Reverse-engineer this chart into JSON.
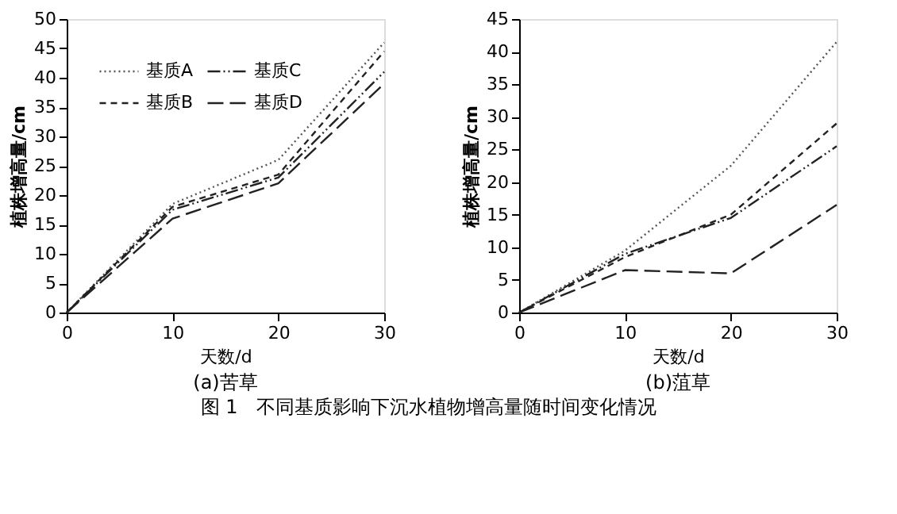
{
  "chart_data": [
    {
      "type": "line",
      "title": "(a)苦草",
      "xlabel": "天数/d",
      "ylabel": "植株增高量/cm",
      "x": [
        0,
        10,
        20,
        30
      ],
      "xlim": [
        0,
        30
      ],
      "xticks": [
        0,
        10,
        20,
        30
      ],
      "ylim": [
        0,
        50
      ],
      "yticks": [
        0,
        5,
        10,
        15,
        20,
        25,
        30,
        35,
        40,
        45,
        50
      ],
      "grid": false,
      "legend": "top left",
      "marker": "none",
      "series": [
        {
          "name": "基质A",
          "color": "#555555",
          "line_style": "dotted",
          "values": [
            0,
            18.5,
            26,
            46
          ]
        },
        {
          "name": "基质B",
          "color": "#222222",
          "line_style": "dashed",
          "values": [
            0,
            18,
            23.5,
            44.5
          ]
        },
        {
          "name": "基质C",
          "color": "#222222",
          "line_style": "dashdot",
          "values": [
            0,
            17.5,
            23,
            41
          ]
        },
        {
          "name": "基质D",
          "color": "#222222",
          "line_style": "longdash",
          "values": [
            0,
            16,
            22,
            39
          ]
        }
      ]
    },
    {
      "type": "line",
      "title": "(b)菹草",
      "xlabel": "天数/d",
      "ylabel": "植株增高量/cm",
      "x": [
        0,
        10,
        20,
        30
      ],
      "xlim": [
        0,
        30
      ],
      "xticks": [
        0,
        10,
        20,
        30
      ],
      "ylim": [
        0,
        45
      ],
      "yticks": [
        0,
        5,
        10,
        15,
        20,
        25,
        30,
        35,
        40,
        45
      ],
      "grid": false,
      "legend": "top left",
      "marker": "none",
      "annotations": [
        "图 1　不同基质影响下沉水植物增高量随时间变化情况"
      ],
      "series": [
        {
          "name": "基质A",
          "color": "#555555",
          "line_style": "dotted",
          "values": [
            0,
            9.5,
            22.5,
            41.5
          ]
        },
        {
          "name": "基质B",
          "color": "#222222",
          "line_style": "dashed",
          "values": [
            0,
            8.5,
            15,
            29
          ]
        },
        {
          "name": "基质C",
          "color": "#222222",
          "line_style": "dashdot",
          "values": [
            0,
            9,
            14.5,
            25.5
          ]
        },
        {
          "name": "基质D",
          "color": "#222222",
          "line_style": "longdash",
          "values": [
            0,
            6.5,
            6,
            16.5
          ]
        }
      ]
    }
  ]
}
